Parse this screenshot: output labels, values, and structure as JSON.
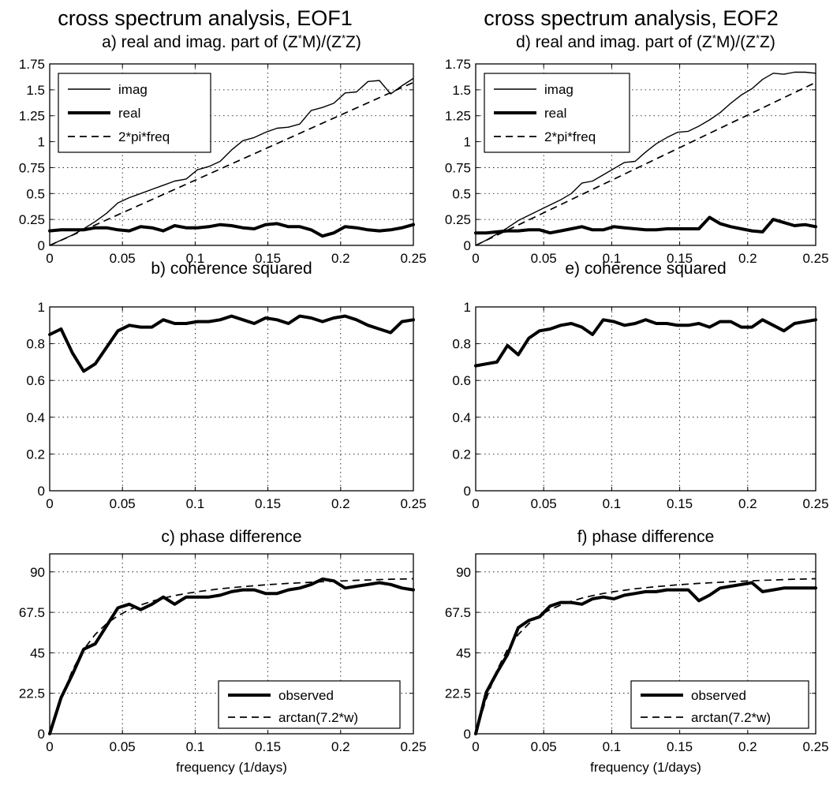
{
  "columns": [
    {
      "title": "cross spectrum analysis, EOF1"
    },
    {
      "title": "cross spectrum analysis, EOF2"
    }
  ],
  "chart_data": [
    {
      "id": "a",
      "type": "line",
      "title": "a) real and imag. part of (Z*M)/(Z*Z)",
      "title_parts": {
        "prefix": "a) real and imag. part of (Z",
        "sup1": "*",
        "mid": "M)/(Z",
        "sup2": "*",
        "suffix": "Z)"
      },
      "xlim": [
        0,
        0.25
      ],
      "ylim": [
        0,
        1.75
      ],
      "xticks": [
        0,
        0.05,
        0.1,
        0.15,
        0.2,
        0.25
      ],
      "yticks": [
        0,
        0.25,
        0.5,
        0.75,
        1,
        1.25,
        1.5,
        1.75
      ],
      "xticklabels": [
        "0",
        "0.05",
        "0.1",
        "0.15",
        "0.2",
        "0.25"
      ],
      "yticklabels": [
        "0",
        "0.25",
        "0.5",
        "0.75",
        "1",
        "1.25",
        "1.5",
        "1.75"
      ],
      "grid": true,
      "legend_position": "top-left",
      "xlabel": "",
      "ylabel": "",
      "series": [
        {
          "name": "imag",
          "style": "thin",
          "x": [
            0,
            0.0078,
            0.0156,
            0.0234,
            0.0313,
            0.0391,
            0.0469,
            0.0547,
            0.0625,
            0.0703,
            0.0781,
            0.0859,
            0.0938,
            0.1016,
            0.1094,
            0.1172,
            0.125,
            0.1328,
            0.1406,
            0.1484,
            0.1563,
            0.1641,
            0.1719,
            0.1797,
            0.1875,
            0.1953,
            0.2031,
            0.2109,
            0.2188,
            0.2266,
            0.2344,
            0.2422,
            0.25
          ],
          "y": [
            0,
            0.05,
            0.1,
            0.16,
            0.23,
            0.31,
            0.41,
            0.46,
            0.5,
            0.54,
            0.58,
            0.62,
            0.64,
            0.73,
            0.76,
            0.81,
            0.92,
            1.01,
            1.04,
            1.09,
            1.13,
            1.14,
            1.17,
            1.3,
            1.33,
            1.37,
            1.47,
            1.48,
            1.58,
            1.59,
            1.46,
            1.54,
            1.61
          ]
        },
        {
          "name": "real",
          "style": "thick",
          "x": [
            0,
            0.0078,
            0.0156,
            0.0234,
            0.0313,
            0.0391,
            0.0469,
            0.0547,
            0.0625,
            0.0703,
            0.0781,
            0.0859,
            0.0938,
            0.1016,
            0.1094,
            0.1172,
            0.125,
            0.1328,
            0.1406,
            0.1484,
            0.1563,
            0.1641,
            0.1719,
            0.1797,
            0.1875,
            0.1953,
            0.2031,
            0.2109,
            0.2188,
            0.2266,
            0.2344,
            0.2422,
            0.25
          ],
          "y": [
            0.14,
            0.15,
            0.15,
            0.15,
            0.17,
            0.17,
            0.15,
            0.14,
            0.18,
            0.17,
            0.14,
            0.19,
            0.17,
            0.17,
            0.18,
            0.2,
            0.19,
            0.17,
            0.16,
            0.2,
            0.21,
            0.18,
            0.18,
            0.15,
            0.09,
            0.12,
            0.18,
            0.17,
            0.15,
            0.14,
            0.15,
            0.17,
            0.2
          ]
        },
        {
          "name": "2*pi*freq",
          "style": "dashed",
          "x": [
            0,
            0.25
          ],
          "y": [
            0,
            1.571
          ]
        }
      ]
    },
    {
      "id": "b",
      "type": "line",
      "title": "b) coherence squared",
      "xlim": [
        0,
        0.25
      ],
      "ylim": [
        0,
        1
      ],
      "xticks": [
        0,
        0.05,
        0.1,
        0.15,
        0.2,
        0.25
      ],
      "yticks": [
        0,
        0.2,
        0.4,
        0.6,
        0.8,
        1
      ],
      "xticklabels": [
        "0",
        "0.05",
        "0.1",
        "0.15",
        "0.2",
        "0.25"
      ],
      "yticklabels": [
        "0",
        "0.2",
        "0.4",
        "0.6",
        "0.8",
        "1"
      ],
      "grid": true,
      "xlabel": "",
      "ylabel": "",
      "series": [
        {
          "style": "thick",
          "x": [
            0,
            0.0078,
            0.0156,
            0.0234,
            0.0313,
            0.0391,
            0.0469,
            0.0547,
            0.0625,
            0.0703,
            0.0781,
            0.0859,
            0.0938,
            0.1016,
            0.1094,
            0.1172,
            0.125,
            0.1328,
            0.1406,
            0.1484,
            0.1563,
            0.1641,
            0.1719,
            0.1797,
            0.1875,
            0.1953,
            0.2031,
            0.2109,
            0.2188,
            0.2266,
            0.2344,
            0.2422,
            0.25
          ],
          "y": [
            0.85,
            0.88,
            0.75,
            0.65,
            0.69,
            0.78,
            0.87,
            0.9,
            0.89,
            0.89,
            0.93,
            0.91,
            0.91,
            0.92,
            0.92,
            0.93,
            0.95,
            0.93,
            0.91,
            0.94,
            0.93,
            0.91,
            0.95,
            0.94,
            0.92,
            0.94,
            0.95,
            0.93,
            0.9,
            0.88,
            0.86,
            0.92,
            0.93
          ]
        }
      ]
    },
    {
      "id": "c",
      "type": "line",
      "title": "c) phase difference",
      "xlim": [
        0,
        0.25
      ],
      "ylim": [
        0,
        100
      ],
      "xticks": [
        0,
        0.05,
        0.1,
        0.15,
        0.2,
        0.25
      ],
      "yticks": [
        0,
        22.5,
        45,
        67.5,
        90
      ],
      "xticklabels": [
        "0",
        "0.05",
        "0.1",
        "0.15",
        "0.2",
        "0.25"
      ],
      "yticklabels": [
        "0",
        "22.5",
        "45",
        "67.5",
        "90"
      ],
      "grid": true,
      "legend_position": "bottom-right",
      "xlabel": "frequency (1/days)",
      "ylabel": "",
      "series": [
        {
          "name": "observed",
          "style": "thick",
          "x": [
            0,
            0.0078,
            0.0156,
            0.0234,
            0.0313,
            0.0391,
            0.0469,
            0.0547,
            0.0625,
            0.0703,
            0.0781,
            0.0859,
            0.0938,
            0.1016,
            0.1094,
            0.1172,
            0.125,
            0.1328,
            0.1406,
            0.1484,
            0.1563,
            0.1641,
            0.1719,
            0.1797,
            0.1875,
            0.1953,
            0.2031,
            0.2109,
            0.2188,
            0.2266,
            0.2344,
            0.2422,
            0.25
          ],
          "y": [
            0,
            20,
            33,
            47,
            50,
            60,
            70,
            72,
            69,
            72,
            76,
            72,
            76,
            76,
            76,
            77,
            79,
            80,
            80,
            78,
            78,
            80,
            81,
            83,
            86,
            85,
            81,
            82,
            83,
            84,
            83,
            81,
            80
          ]
        },
        {
          "name": "arctan(7.2*w)",
          "style": "dashed",
          "x": [
            0,
            0.0078,
            0.0156,
            0.0234,
            0.0313,
            0.0391,
            0.0469,
            0.0547,
            0.0625,
            0.0703,
            0.0781,
            0.0859,
            0.0938,
            0.1016,
            0.1094,
            0.1172,
            0.125,
            0.1328,
            0.1406,
            0.1484,
            0.1563,
            0.1641,
            0.1719,
            0.1797,
            0.1875,
            0.1953,
            0.2031,
            0.2109,
            0.2188,
            0.2266,
            0.2344,
            0.2422,
            0.25
          ],
          "y": [
            0,
            19.4,
            35.3,
            46.9,
            55.2,
            61.2,
            65.6,
            69.0,
            71.6,
            73.7,
            75.4,
            76.8,
            78.0,
            79.0,
            79.8,
            80.6,
            81.2,
            81.8,
            82.3,
            82.8,
            83.2,
            83.6,
            83.9,
            84.2,
            84.5,
            84.8,
            85.0,
            85.3,
            85.5,
            85.7,
            85.9,
            86.0,
            86.2
          ]
        }
      ]
    },
    {
      "id": "d",
      "type": "line",
      "title": "d) real and imag. part of (Z*M)/(Z*Z)",
      "title_parts": {
        "prefix": "d) real and imag. part of (Z",
        "sup1": "*",
        "mid": "M)/(Z",
        "sup2": "*",
        "suffix": "Z)"
      },
      "xlim": [
        0,
        0.25
      ],
      "ylim": [
        0,
        1.75
      ],
      "xticks": [
        0,
        0.05,
        0.1,
        0.15,
        0.2,
        0.25
      ],
      "yticks": [
        0,
        0.25,
        0.5,
        0.75,
        1,
        1.25,
        1.5,
        1.75
      ],
      "xticklabels": [
        "0",
        "0.05",
        "0.1",
        "0.15",
        "0.2",
        "0.25"
      ],
      "yticklabels": [
        "0",
        "0.25",
        "0.5",
        "0.75",
        "1",
        "1.25",
        "1.5",
        "1.75"
      ],
      "grid": true,
      "legend_position": "top-left",
      "xlabel": "",
      "ylabel": "",
      "series": [
        {
          "name": "imag",
          "style": "thin",
          "x": [
            0,
            0.0078,
            0.0156,
            0.0234,
            0.0313,
            0.0391,
            0.0469,
            0.0547,
            0.0625,
            0.0703,
            0.0781,
            0.0859,
            0.0938,
            0.1016,
            0.1094,
            0.1172,
            0.125,
            0.1328,
            0.1406,
            0.1484,
            0.1563,
            0.1641,
            0.1719,
            0.1797,
            0.1875,
            0.1953,
            0.2031,
            0.2109,
            0.2188,
            0.2266,
            0.2344,
            0.2422,
            0.25
          ],
          "y": [
            0,
            0.05,
            0.11,
            0.17,
            0.24,
            0.29,
            0.34,
            0.39,
            0.44,
            0.5,
            0.6,
            0.62,
            0.68,
            0.74,
            0.8,
            0.81,
            0.9,
            0.98,
            1.04,
            1.09,
            1.1,
            1.15,
            1.21,
            1.28,
            1.37,
            1.45,
            1.51,
            1.6,
            1.66,
            1.65,
            1.67,
            1.67,
            1.66
          ]
        },
        {
          "name": "real",
          "style": "thick",
          "x": [
            0,
            0.0078,
            0.0156,
            0.0234,
            0.0313,
            0.0391,
            0.0469,
            0.0547,
            0.0625,
            0.0703,
            0.0781,
            0.0859,
            0.0938,
            0.1016,
            0.1094,
            0.1172,
            0.125,
            0.1328,
            0.1406,
            0.1484,
            0.1563,
            0.1641,
            0.1719,
            0.1797,
            0.1875,
            0.1953,
            0.2031,
            0.2109,
            0.2188,
            0.2266,
            0.2344,
            0.2422,
            0.25
          ],
          "y": [
            0.12,
            0.12,
            0.13,
            0.14,
            0.14,
            0.15,
            0.15,
            0.12,
            0.14,
            0.16,
            0.18,
            0.15,
            0.15,
            0.18,
            0.17,
            0.16,
            0.15,
            0.15,
            0.16,
            0.16,
            0.16,
            0.16,
            0.27,
            0.21,
            0.18,
            0.16,
            0.14,
            0.13,
            0.25,
            0.22,
            0.19,
            0.2,
            0.18
          ]
        },
        {
          "name": "2*pi*freq",
          "style": "dashed",
          "x": [
            0,
            0.25
          ],
          "y": [
            0,
            1.571
          ]
        }
      ]
    },
    {
      "id": "e",
      "type": "line",
      "title": "e) coherence squared",
      "xlim": [
        0,
        0.25
      ],
      "ylim": [
        0,
        1
      ],
      "xticks": [
        0,
        0.05,
        0.1,
        0.15,
        0.2,
        0.25
      ],
      "yticks": [
        0,
        0.2,
        0.4,
        0.6,
        0.8,
        1
      ],
      "xticklabels": [
        "0",
        "0.05",
        "0.1",
        "0.15",
        "0.2",
        "0.25"
      ],
      "yticklabels": [
        "0",
        "0.2",
        "0.4",
        "0.6",
        "0.8",
        "1"
      ],
      "grid": true,
      "xlabel": "",
      "ylabel": "",
      "series": [
        {
          "style": "thick",
          "x": [
            0,
            0.0078,
            0.0156,
            0.0234,
            0.0313,
            0.0391,
            0.0469,
            0.0547,
            0.0625,
            0.0703,
            0.0781,
            0.0859,
            0.0938,
            0.1016,
            0.1094,
            0.1172,
            0.125,
            0.1328,
            0.1406,
            0.1484,
            0.1563,
            0.1641,
            0.1719,
            0.1797,
            0.1875,
            0.1953,
            0.2031,
            0.2109,
            0.2188,
            0.2266,
            0.2344,
            0.2422,
            0.25
          ],
          "y": [
            0.68,
            0.69,
            0.7,
            0.79,
            0.74,
            0.83,
            0.87,
            0.88,
            0.9,
            0.91,
            0.89,
            0.85,
            0.93,
            0.92,
            0.9,
            0.91,
            0.93,
            0.91,
            0.91,
            0.9,
            0.9,
            0.91,
            0.89,
            0.92,
            0.92,
            0.89,
            0.89,
            0.93,
            0.9,
            0.87,
            0.91,
            0.92,
            0.93
          ]
        }
      ]
    },
    {
      "id": "f",
      "type": "line",
      "title": "f) phase difference",
      "xlim": [
        0,
        0.25
      ],
      "ylim": [
        0,
        100
      ],
      "xticks": [
        0,
        0.05,
        0.1,
        0.15,
        0.2,
        0.25
      ],
      "yticks": [
        0,
        22.5,
        45,
        67.5,
        90
      ],
      "xticklabels": [
        "0",
        "0.05",
        "0.1",
        "0.15",
        "0.2",
        "0.25"
      ],
      "yticklabels": [
        "0",
        "22.5",
        "45",
        "67.5",
        "90"
      ],
      "grid": true,
      "legend_position": "bottom-right",
      "xlabel": "frequency (1/days)",
      "ylabel": "",
      "series": [
        {
          "name": "observed",
          "style": "thick",
          "x": [
            0,
            0.0078,
            0.0156,
            0.0234,
            0.0313,
            0.0391,
            0.0469,
            0.0547,
            0.0625,
            0.0703,
            0.0781,
            0.0859,
            0.0938,
            0.1016,
            0.1094,
            0.1172,
            0.125,
            0.1328,
            0.1406,
            0.1484,
            0.1563,
            0.1641,
            0.1719,
            0.1797,
            0.1875,
            0.1953,
            0.2031,
            0.2109,
            0.2188,
            0.2266,
            0.2344,
            0.2422,
            0.25
          ],
          "y": [
            0,
            23,
            34,
            44,
            59,
            63,
            65,
            71,
            73,
            73,
            72,
            75,
            76,
            75,
            77,
            78,
            79,
            79,
            80,
            80,
            80,
            74,
            77,
            81,
            82,
            83,
            84,
            79,
            80,
            81,
            81,
            81,
            81
          ]
        },
        {
          "name": "arctan(7.2*w)",
          "style": "dashed",
          "x": [
            0,
            0.0078,
            0.0156,
            0.0234,
            0.0313,
            0.0391,
            0.0469,
            0.0547,
            0.0625,
            0.0703,
            0.0781,
            0.0859,
            0.0938,
            0.1016,
            0.1094,
            0.1172,
            0.125,
            0.1328,
            0.1406,
            0.1484,
            0.1563,
            0.1641,
            0.1719,
            0.1797,
            0.1875,
            0.1953,
            0.2031,
            0.2109,
            0.2188,
            0.2266,
            0.2344,
            0.2422,
            0.25
          ],
          "y": [
            0,
            19.4,
            35.3,
            46.9,
            55.2,
            61.2,
            65.6,
            69.0,
            71.6,
            73.7,
            75.4,
            76.8,
            78.0,
            79.0,
            79.8,
            80.6,
            81.2,
            81.8,
            82.3,
            82.8,
            83.2,
            83.6,
            83.9,
            84.2,
            84.5,
            84.8,
            85.0,
            85.3,
            85.5,
            85.7,
            85.9,
            86.0,
            86.2
          ]
        }
      ]
    }
  ]
}
